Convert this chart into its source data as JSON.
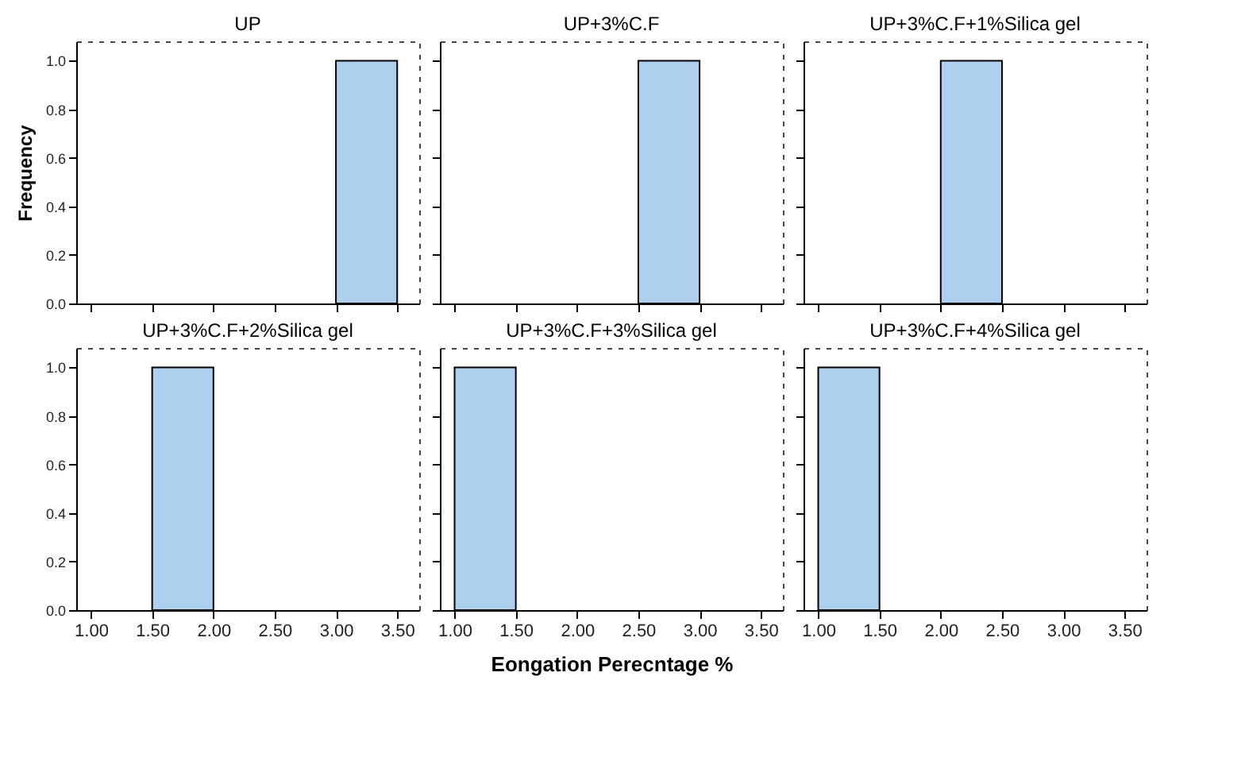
{
  "chart_data": [
    {
      "type": "histogram",
      "title": "UP",
      "ylabel": "Frequency",
      "bins": [
        3.0,
        3.5
      ],
      "values": [
        1
      ],
      "color": "#aed0ee",
      "xlim": [
        0.88,
        3.68
      ],
      "ylim": [
        0,
        1.08
      ],
      "xticks": [
        {
          "value": 1,
          "label": null
        },
        {
          "value": 1.5,
          "label": null
        },
        {
          "value": 2,
          "label": null
        },
        {
          "value": 2.5,
          "label": null
        },
        {
          "value": 3,
          "label": null
        },
        {
          "value": 3.5,
          "label": null
        }
      ],
      "yticks": [
        {
          "value": 0,
          "label": "0.0"
        },
        {
          "value": 0.2,
          "label": "0.2"
        },
        {
          "value": 0.4,
          "label": "0.4"
        },
        {
          "value": 0.6,
          "label": "0.6"
        },
        {
          "value": 0.8,
          "label": "0.8"
        },
        {
          "value": 1,
          "label": "1.0"
        }
      ],
      "tick_labels": "y",
      "grid": false
    },
    {
      "type": "histogram",
      "title": "UP+3%C.F",
      "bins": [
        2.5,
        3.0
      ],
      "values": [
        1
      ],
      "color": "#aed0ee",
      "xlim": [
        0.88,
        3.68
      ],
      "ylim": [
        0,
        1.08
      ],
      "xticks": [
        {
          "value": 1,
          "label": null
        },
        {
          "value": 1.5,
          "label": null
        },
        {
          "value": 2,
          "label": null
        },
        {
          "value": 2.5,
          "label": null
        },
        {
          "value": 3,
          "label": null
        },
        {
          "value": 3.5,
          "label": null
        }
      ],
      "yticks": [
        {
          "value": 0,
          "label": null
        },
        {
          "value": 0.2,
          "label": null
        },
        {
          "value": 0.4,
          "label": null
        },
        {
          "value": 0.6,
          "label": null
        },
        {
          "value": 0.8,
          "label": null
        },
        {
          "value": 1,
          "label": null
        }
      ],
      "tick_labels": false,
      "grid": false
    },
    {
      "type": "histogram",
      "title": "UP+3%C.F+1%Silica gel",
      "bins": [
        2.0,
        2.5
      ],
      "values": [
        1
      ],
      "color": "#aed0ee",
      "xlim": [
        0.88,
        3.68
      ],
      "ylim": [
        0,
        1.08
      ],
      "xticks": [
        {
          "value": 1,
          "label": null
        },
        {
          "value": 1.5,
          "label": null
        },
        {
          "value": 2,
          "label": null
        },
        {
          "value": 2.5,
          "label": null
        },
        {
          "value": 3,
          "label": null
        },
        {
          "value": 3.5,
          "label": null
        }
      ],
      "yticks": [
        {
          "value": 0,
          "label": null
        },
        {
          "value": 0.2,
          "label": null
        },
        {
          "value": 0.4,
          "label": null
        },
        {
          "value": 0.6,
          "label": null
        },
        {
          "value": 0.8,
          "label": null
        },
        {
          "value": 1,
          "label": null
        }
      ],
      "tick_labels": false,
      "grid": false
    },
    {
      "type": "histogram",
      "title": "UP+3%C.F+2%Silica gel",
      "bins": [
        1.5,
        2.0
      ],
      "values": [
        1
      ],
      "color": "#aed0ee",
      "xlim": [
        0.88,
        3.68
      ],
      "ylim": [
        0,
        1.08
      ],
      "xticks": [
        {
          "value": 1,
          "label": "1.00"
        },
        {
          "value": 1.5,
          "label": "1.50"
        },
        {
          "value": 2,
          "label": "2.00"
        },
        {
          "value": 2.5,
          "label": "2.50"
        },
        {
          "value": 3,
          "label": "3.00"
        },
        {
          "value": 3.5,
          "label": "3.50"
        }
      ],
      "yticks": [
        {
          "value": 0,
          "label": "0.0"
        },
        {
          "value": 0.2,
          "label": "0.2"
        },
        {
          "value": 0.4,
          "label": "0.4"
        },
        {
          "value": 0.6,
          "label": "0.6"
        },
        {
          "value": 0.8,
          "label": "0.8"
        },
        {
          "value": 1,
          "label": "1.0"
        }
      ],
      "grid": false
    },
    {
      "type": "histogram",
      "title": "UP+3%C.F+3%Silica gel",
      "xlabel": "Eongation Perecntage %",
      "bins": [
        1.0,
        1.5
      ],
      "values": [
        1
      ],
      "color": "#aed0ee",
      "xlim": [
        0.88,
        3.68
      ],
      "ylim": [
        0,
        1.08
      ],
      "xticks": [
        {
          "value": 1,
          "label": "1.00"
        },
        {
          "value": 1.5,
          "label": "1.50"
        },
        {
          "value": 2,
          "label": "2.00"
        },
        {
          "value": 2.5,
          "label": "2.50"
        },
        {
          "value": 3,
          "label": "3.00"
        },
        {
          "value": 3.5,
          "label": "3.50"
        }
      ],
      "yticks": [
        {
          "value": 0,
          "label": null
        },
        {
          "value": 0.2,
          "label": null
        },
        {
          "value": 0.4,
          "label": null
        },
        {
          "value": 0.6,
          "label": null
        },
        {
          "value": 0.8,
          "label": null
        },
        {
          "value": 1,
          "label": null
        }
      ],
      "tick_labels": "x",
      "grid": false
    },
    {
      "type": "histogram",
      "title": "UP+3%C.F+4%Silica gel",
      "bins": [
        1.0,
        1.5
      ],
      "values": [
        1
      ],
      "color": "#aed0ee",
      "xlim": [
        0.88,
        3.68
      ],
      "ylim": [
        0,
        1.08
      ],
      "xticks": [
        {
          "value": 1,
          "label": "1.00"
        },
        {
          "value": 1.5,
          "label": "1.50"
        },
        {
          "value": 2,
          "label": "2.00"
        },
        {
          "value": 2.5,
          "label": "2.50"
        },
        {
          "value": 3,
          "label": "3.00"
        },
        {
          "value": 3.5,
          "label": "3.50"
        }
      ],
      "yticks": [
        {
          "value": 0,
          "label": null
        },
        {
          "value": 0.2,
          "label": null
        },
        {
          "value": 0.4,
          "label": null
        },
        {
          "value": 0.6,
          "label": null
        },
        {
          "value": 0.8,
          "label": null
        },
        {
          "value": 1,
          "label": null
        }
      ],
      "tick_labels": "x",
      "grid": false
    }
  ]
}
